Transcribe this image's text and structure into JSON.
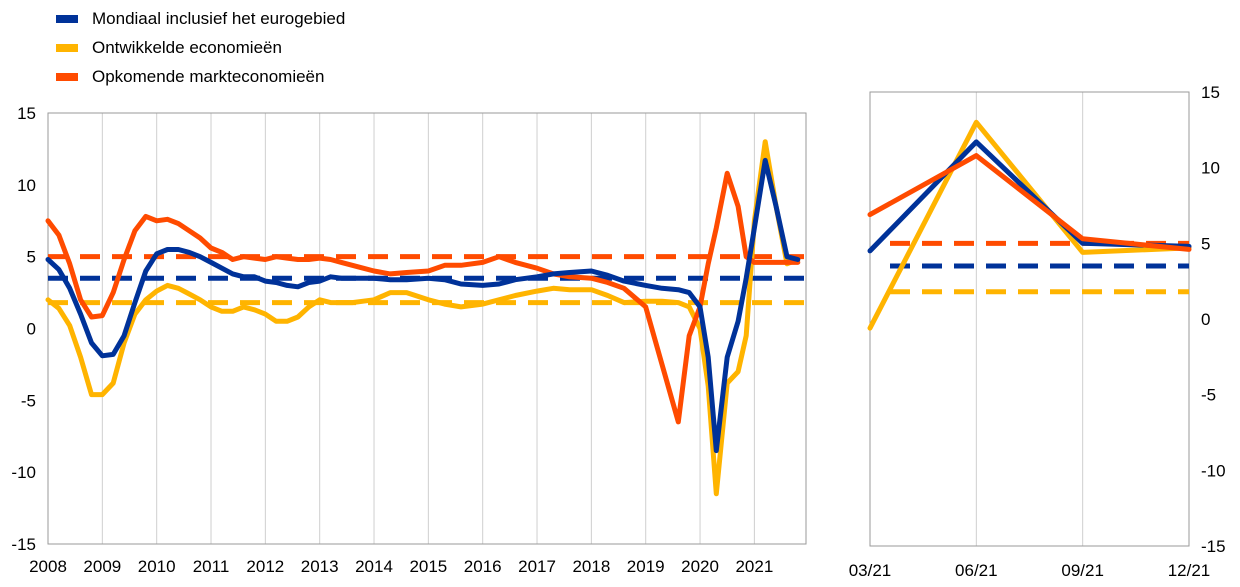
{
  "legend": {
    "items": [
      {
        "label": "Mondiaal inclusief het eurogebied",
        "color": "#003299"
      },
      {
        "label": "Ontwikkelde economieën",
        "color": "#FFB400"
      },
      {
        "label": "Opkomende markteconomieën",
        "color": "#FF4B00"
      }
    ]
  },
  "chart_data": [
    {
      "type": "line",
      "ylim": [
        -15,
        15
      ],
      "yticks": [
        -15,
        -10,
        -5,
        0,
        5,
        10,
        15
      ],
      "xlim": [
        2008,
        2021.95
      ],
      "xticks": [
        2008,
        2009,
        2010,
        2011,
        2012,
        2013,
        2014,
        2015,
        2016,
        2017,
        2018,
        2019,
        2020,
        2021
      ],
      "grid": "vertical",
      "series": [
        {
          "name": "Mondiaal inclusief het eurogebied",
          "color": "#003299",
          "average": 3.5,
          "x": [
            2008.0,
            2008.2,
            2008.4,
            2008.6,
            2008.8,
            2009.0,
            2009.2,
            2009.4,
            2009.6,
            2009.8,
            2010.0,
            2010.2,
            2010.4,
            2010.6,
            2010.8,
            2011.0,
            2011.2,
            2011.4,
            2011.6,
            2011.8,
            2012.0,
            2012.2,
            2012.4,
            2012.6,
            2012.8,
            2013.0,
            2013.2,
            2013.4,
            2013.6,
            2013.8,
            2014.0,
            2014.3,
            2014.6,
            2015.0,
            2015.3,
            2015.6,
            2016.0,
            2016.3,
            2016.6,
            2017.0,
            2017.3,
            2017.6,
            2018.0,
            2018.3,
            2018.6,
            2019.0,
            2019.3,
            2019.6,
            2019.8,
            2020.0,
            2020.15,
            2020.3,
            2020.5,
            2020.7,
            2020.85,
            2021.0,
            2021.2,
            2021.4,
            2021.6,
            2021.8
          ],
          "values": [
            4.8,
            4.1,
            2.8,
            1.0,
            -1.0,
            -1.9,
            -1.8,
            -0.5,
            1.8,
            4.0,
            5.2,
            5.5,
            5.5,
            5.3,
            5.0,
            4.6,
            4.2,
            3.8,
            3.6,
            3.6,
            3.3,
            3.2,
            3.0,
            2.9,
            3.2,
            3.3,
            3.6,
            3.5,
            3.5,
            3.5,
            3.5,
            3.4,
            3.4,
            3.5,
            3.4,
            3.1,
            3.0,
            3.1,
            3.4,
            3.6,
            3.8,
            3.9,
            4.0,
            3.7,
            3.3,
            3.0,
            2.8,
            2.7,
            2.5,
            1.5,
            -2.0,
            -8.5,
            -2.0,
            0.5,
            3.5,
            7.0,
            11.7,
            8.5,
            5.0,
            4.8
          ]
        },
        {
          "name": "Ontwikkelde economieën",
          "color": "#FFB400",
          "average": 1.8,
          "x": [
            2008.0,
            2008.2,
            2008.4,
            2008.6,
            2008.8,
            2009.0,
            2009.2,
            2009.4,
            2009.6,
            2009.8,
            2010.0,
            2010.2,
            2010.4,
            2010.6,
            2010.8,
            2011.0,
            2011.2,
            2011.4,
            2011.6,
            2011.8,
            2012.0,
            2012.2,
            2012.4,
            2012.6,
            2012.8,
            2013.0,
            2013.2,
            2013.4,
            2013.6,
            2013.8,
            2014.0,
            2014.3,
            2014.6,
            2015.0,
            2015.3,
            2015.6,
            2016.0,
            2016.3,
            2016.6,
            2017.0,
            2017.3,
            2017.6,
            2018.0,
            2018.3,
            2018.6,
            2019.0,
            2019.3,
            2019.6,
            2019.8,
            2020.0,
            2020.15,
            2020.3,
            2020.5,
            2020.7,
            2020.85,
            2021.0,
            2021.2,
            2021.4,
            2021.6,
            2021.8
          ],
          "values": [
            2.0,
            1.4,
            0.2,
            -2.0,
            -4.6,
            -4.6,
            -3.8,
            -1.0,
            1.0,
            2.0,
            2.6,
            3.0,
            2.8,
            2.4,
            2.0,
            1.5,
            1.2,
            1.2,
            1.5,
            1.3,
            1.0,
            0.5,
            0.5,
            0.8,
            1.5,
            2.0,
            1.8,
            1.8,
            1.8,
            1.9,
            2.0,
            2.5,
            2.5,
            2.0,
            1.7,
            1.5,
            1.7,
            2.0,
            2.3,
            2.6,
            2.8,
            2.7,
            2.7,
            2.3,
            1.8,
            1.9,
            1.9,
            1.8,
            1.5,
            0.0,
            -4.0,
            -11.5,
            -3.8,
            -3.0,
            -0.5,
            7.5,
            13.0,
            8.5,
            4.5,
            4.8
          ]
        },
        {
          "name": "Opkomende markteconomieën",
          "color": "#FF4B00",
          "average": 5.0,
          "x": [
            2008.0,
            2008.2,
            2008.4,
            2008.6,
            2008.8,
            2009.0,
            2009.2,
            2009.4,
            2009.6,
            2009.8,
            2010.0,
            2010.2,
            2010.4,
            2010.6,
            2010.8,
            2011.0,
            2011.2,
            2011.4,
            2011.6,
            2011.8,
            2012.0,
            2012.2,
            2012.4,
            2012.6,
            2012.8,
            2013.0,
            2013.2,
            2013.4,
            2013.6,
            2013.8,
            2014.0,
            2014.3,
            2014.6,
            2015.0,
            2015.3,
            2015.6,
            2016.0,
            2016.3,
            2016.6,
            2017.0,
            2017.3,
            2017.6,
            2018.0,
            2018.3,
            2018.6,
            2019.0,
            2019.3,
            2019.6,
            2019.8,
            2020.0,
            2020.15,
            2020.3,
            2020.5,
            2020.7,
            2020.85,
            2021.0,
            2021.2,
            2021.4,
            2021.6,
            2021.8
          ],
          "values": [
            7.5,
            6.5,
            4.5,
            2.0,
            0.8,
            0.9,
            2.5,
            4.8,
            6.8,
            7.8,
            7.5,
            7.6,
            7.3,
            6.8,
            6.3,
            5.6,
            5.3,
            4.8,
            5.0,
            4.9,
            4.8,
            5.0,
            4.9,
            4.8,
            4.8,
            4.9,
            4.8,
            4.6,
            4.4,
            4.2,
            4.0,
            3.8,
            3.9,
            4.0,
            4.4,
            4.4,
            4.6,
            5.0,
            4.6,
            4.2,
            3.8,
            3.6,
            3.5,
            3.2,
            2.8,
            1.5,
            -2.5,
            -6.5,
            -0.5,
            1.5,
            4.5,
            7.0,
            10.8,
            8.5,
            5.0,
            4.6,
            4.6,
            4.6,
            4.6,
            4.6
          ]
        }
      ]
    },
    {
      "type": "line",
      "ylim": [
        -15,
        15
      ],
      "yticks": [
        -15,
        -10,
        -5,
        0,
        5,
        10,
        15
      ],
      "categories": [
        "03/21",
        "06/21",
        "09/21",
        "12/21"
      ],
      "grid": "vertical",
      "series": [
        {
          "name": "Mondiaal inclusief het eurogebied",
          "color": "#003299",
          "average": 3.5,
          "values": [
            4.5,
            11.7,
            5.0,
            4.8
          ]
        },
        {
          "name": "Ontwikkelde economieën",
          "color": "#FFB400",
          "average": 1.8,
          "values": [
            -0.6,
            13.0,
            4.4,
            4.7
          ]
        },
        {
          "name": "Opkomende markteconomieën",
          "color": "#FF4B00",
          "average": 5.0,
          "values": [
            6.9,
            10.8,
            5.3,
            4.6
          ]
        }
      ]
    }
  ]
}
